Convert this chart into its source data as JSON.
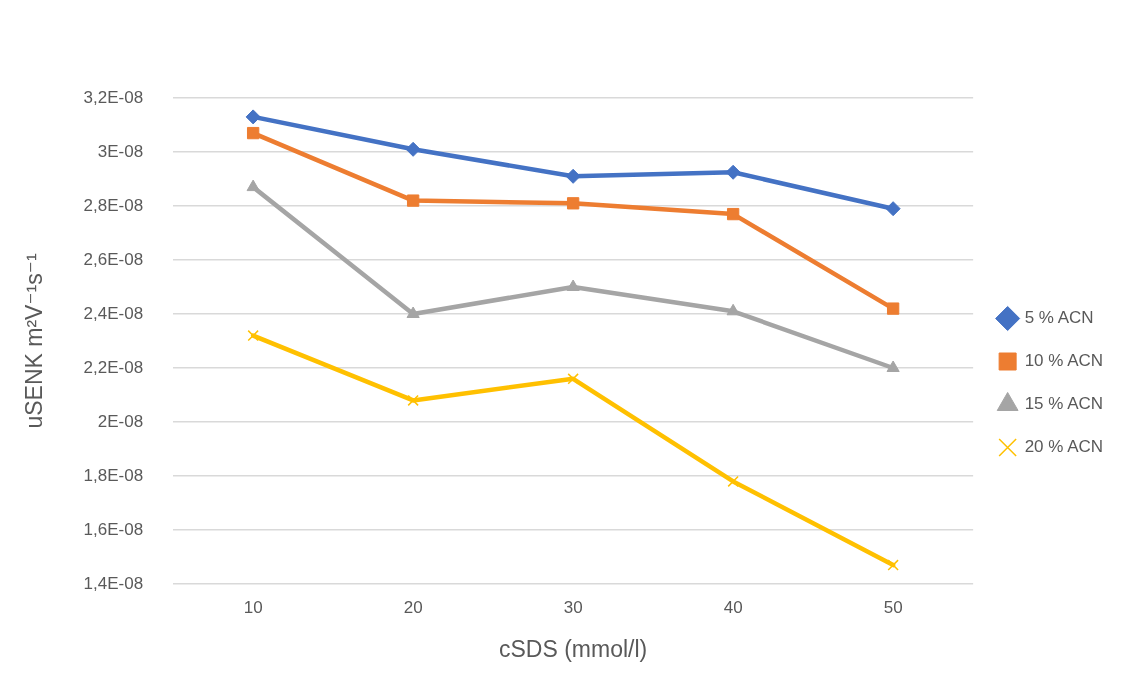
{
  "chart_data": {
    "type": "line",
    "xlabel": "cSDS (mmol/l)",
    "ylabel": "uSENK m²V⁻¹s⁻¹",
    "categories": [
      "10",
      "20",
      "30",
      "40",
      "50"
    ],
    "ylim": [
      1.4e-08,
      3.2e-08
    ],
    "yticks": [
      {
        "value": 1.4e-08,
        "label": "1,4E-08"
      },
      {
        "value": 1.6e-08,
        "label": "1,6E-08"
      },
      {
        "value": 1.8e-08,
        "label": "1,8E-08"
      },
      {
        "value": 2e-08,
        "label": "2E-08"
      },
      {
        "value": 2.2e-08,
        "label": "2,2E-08"
      },
      {
        "value": 2.4e-08,
        "label": "2,4E-08"
      },
      {
        "value": 2.6e-08,
        "label": "2,6E-08"
      },
      {
        "value": 2.8e-08,
        "label": "2,8E-08"
      },
      {
        "value": 3e-08,
        "label": "3E-08"
      },
      {
        "value": 3.2e-08,
        "label": "3,2E-08"
      }
    ],
    "grid": "y",
    "legend": "right",
    "series": [
      {
        "name": "5 % ACN",
        "color": "#4472c4",
        "marker": "diamond",
        "values": [
          3.13e-08,
          3.01e-08,
          2.91e-08,
          2.925e-08,
          2.79e-08
        ]
      },
      {
        "name": "10 % ACN",
        "color": "#ed7d31",
        "marker": "square",
        "values": [
          3.07e-08,
          2.82e-08,
          2.81e-08,
          2.77e-08,
          2.42e-08
        ]
      },
      {
        "name": "15 % ACN",
        "color": "#a5a5a5",
        "marker": "triangle",
        "values": [
          2.87e-08,
          2.4e-08,
          2.5e-08,
          2.41e-08,
          2.2e-08
        ]
      },
      {
        "name": "20 % ACN",
        "color": "#ffc000",
        "marker": "cross",
        "values": [
          2.32e-08,
          2.08e-08,
          2.16e-08,
          1.78e-08,
          1.47e-08
        ]
      }
    ]
  }
}
